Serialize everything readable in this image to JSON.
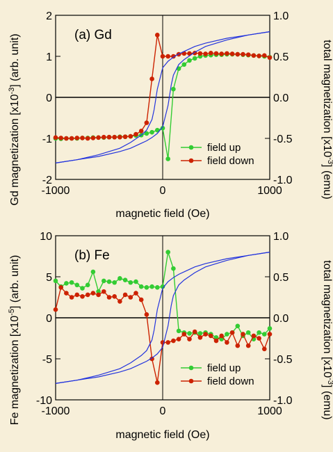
{
  "chart_data": [
    {
      "type": "line",
      "panel_label": "(a) Gd",
      "xlabel": "magnetic field (Oe)",
      "ylabel_left": "Gd magnetization [x10",
      "ylabel_left_exp": "-3",
      "ylabel_left_unit": "] (arb. unit)",
      "ylabel_right": "total magnetization [x10",
      "ylabel_right_exp": "-3",
      "ylabel_right_unit": "] (emu)",
      "xlim": [
        -1000,
        1000
      ],
      "ylim_left": [
        -2,
        2
      ],
      "ylim_right": [
        -1.0,
        1.0
      ],
      "xticks": [
        "-1000",
        "0",
        "1000"
      ],
      "yticks_left": [
        "-2",
        "-1",
        "0",
        "1",
        "2"
      ],
      "yticks_right": [
        "-1.0",
        "-0.5",
        "0.0",
        "0.5",
        "1.0"
      ],
      "legend": {
        "position": "bottom-right",
        "items": [
          "field up",
          "field down"
        ]
      },
      "colors": {
        "field_up": "#33cc33",
        "field_down": "#cc2200",
        "total": "#2233dd"
      },
      "series": [
        {
          "name": "field up",
          "x": [
            -1000,
            -950,
            -900,
            -850,
            -800,
            -750,
            -700,
            -650,
            -600,
            -550,
            -500,
            -450,
            -400,
            -350,
            -300,
            -250,
            -200,
            -150,
            -100,
            -50,
            0,
            50,
            100,
            150,
            200,
            250,
            300,
            350,
            400,
            450,
            500,
            550,
            600,
            650,
            700,
            750,
            800,
            850,
            900,
            950,
            1000
          ],
          "y": [
            -1.0,
            -1.01,
            -1.0,
            -1.0,
            -1.0,
            -0.99,
            -0.99,
            -0.98,
            -0.98,
            -0.98,
            -0.97,
            -0.97,
            -0.96,
            -0.96,
            -0.95,
            -0.93,
            -0.92,
            -0.88,
            -0.85,
            -0.8,
            -0.75,
            -1.5,
            0.2,
            0.7,
            0.8,
            0.9,
            0.95,
            1.0,
            1.02,
            1.03,
            1.04,
            1.04,
            1.05,
            1.05,
            1.05,
            1.04,
            1.03,
            1.02,
            1.01,
            1.0,
            0.98
          ]
        },
        {
          "name": "field down",
          "x": [
            -1000,
            -950,
            -900,
            -850,
            -800,
            -750,
            -700,
            -650,
            -600,
            -550,
            -500,
            -450,
            -400,
            -350,
            -300,
            -250,
            -200,
            -150,
            -100,
            -50,
            0,
            50,
            100,
            150,
            200,
            250,
            300,
            350,
            400,
            450,
            500,
            550,
            600,
            650,
            700,
            750,
            800,
            850,
            900,
            950,
            1000
          ],
          "y": [
            -0.98,
            -0.99,
            -1.0,
            -1.0,
            -0.99,
            -0.99,
            -1.0,
            -0.99,
            -0.98,
            -0.97,
            -0.97,
            -0.97,
            -0.97,
            -0.96,
            -0.95,
            -0.9,
            -0.82,
            -0.62,
            0.45,
            1.52,
            1.0,
            1.0,
            1.0,
            1.05,
            1.07,
            1.07,
            1.08,
            1.07,
            1.06,
            1.08,
            1.07,
            1.06,
            1.07,
            1.06,
            1.05,
            1.05,
            1.04,
            1.02,
            1.01,
            1.02,
            0.97
          ]
        },
        {
          "name": "total magnetization (ascending)",
          "x": [
            -1000,
            -800,
            -600,
            -400,
            -300,
            -200,
            -150,
            -100,
            -50,
            0,
            50,
            80,
            100,
            150,
            200,
            300,
            400,
            600,
            800,
            1000
          ],
          "y": [
            -0.8,
            -0.76,
            -0.72,
            -0.66,
            -0.62,
            -0.56,
            -0.53,
            -0.49,
            -0.44,
            -0.36,
            -0.1,
            0.15,
            0.27,
            0.4,
            0.46,
            0.55,
            0.62,
            0.7,
            0.76,
            0.8
          ]
        },
        {
          "name": "total magnetization (descending)",
          "x": [
            -1000,
            -800,
            -600,
            -400,
            -300,
            -200,
            -150,
            -100,
            -80,
            -50,
            0,
            50,
            100,
            150,
            200,
            300,
            400,
            600,
            800,
            1000
          ],
          "y": [
            -0.8,
            -0.76,
            -0.7,
            -0.62,
            -0.55,
            -0.46,
            -0.4,
            -0.27,
            -0.15,
            0.1,
            0.36,
            0.44,
            0.49,
            0.53,
            0.56,
            0.62,
            0.66,
            0.72,
            0.76,
            0.8
          ]
        }
      ]
    },
    {
      "type": "line",
      "panel_label": "(b) Fe",
      "xlabel": "magnetic field (Oe)",
      "ylabel_left": "Fe magnetization [x10",
      "ylabel_left_exp": "-5",
      "ylabel_left_unit": "] (arb. unit)",
      "ylabel_right": "total magnetization [x10",
      "ylabel_right_exp": "-3",
      "ylabel_right_unit": "] (emu)",
      "xlim": [
        -1000,
        1000
      ],
      "ylim_left": [
        -10,
        10
      ],
      "ylim_right": [
        -1.0,
        1.0
      ],
      "xticks": [
        "-1000",
        "0",
        "1000"
      ],
      "yticks_left": [
        "-10",
        "-5",
        "0",
        "5",
        "10"
      ],
      "yticks_right": [
        "-1.0",
        "-0.5",
        "0.0",
        "0.5",
        "1.0"
      ],
      "legend": {
        "position": "bottom-right",
        "items": [
          "field up",
          "field down"
        ]
      },
      "colors": {
        "field_up": "#33cc33",
        "field_down": "#cc2200",
        "total": "#2233dd"
      },
      "series": [
        {
          "name": "field up",
          "x": [
            -1000,
            -950,
            -900,
            -850,
            -800,
            -750,
            -700,
            -650,
            -600,
            -550,
            -500,
            -450,
            -400,
            -350,
            -300,
            -250,
            -200,
            -150,
            -100,
            -50,
            0,
            50,
            100,
            150,
            200,
            250,
            300,
            350,
            400,
            450,
            500,
            550,
            600,
            650,
            700,
            750,
            800,
            850,
            900,
            950,
            1000
          ],
          "y": [
            4.5,
            3.8,
            4.2,
            4.3,
            4.0,
            3.6,
            4.0,
            5.6,
            3.2,
            4.5,
            4.4,
            4.3,
            4.8,
            4.6,
            4.3,
            4.4,
            3.8,
            3.7,
            3.8,
            3.7,
            3.8,
            8.0,
            6.0,
            -1.6,
            -1.8,
            -1.9,
            -1.8,
            -1.9,
            -1.8,
            -2.0,
            -2.4,
            -2.6,
            -2.0,
            -1.8,
            -1.0,
            -2.2,
            -1.8,
            -2.6,
            -1.8,
            -2.0,
            -1.3
          ]
        },
        {
          "name": "field down",
          "x": [
            -1000,
            -950,
            -900,
            -850,
            -800,
            -750,
            -700,
            -650,
            -600,
            -550,
            -500,
            -450,
            -400,
            -350,
            -300,
            -250,
            -200,
            -150,
            -100,
            -50,
            0,
            50,
            100,
            150,
            200,
            250,
            300,
            350,
            400,
            450,
            500,
            550,
            600,
            650,
            700,
            750,
            800,
            850,
            900,
            950,
            1000
          ],
          "y": [
            1.0,
            3.7,
            3.0,
            2.5,
            2.8,
            2.6,
            2.8,
            3.0,
            2.8,
            3.2,
            2.5,
            2.6,
            2.0,
            2.8,
            2.5,
            3.0,
            2.2,
            0.4,
            -5.0,
            -7.9,
            -3.0,
            -3.0,
            -2.8,
            -2.6,
            -2.0,
            -2.6,
            -1.7,
            -2.4,
            -2.0,
            -2.2,
            -2.8,
            -2.2,
            -3.0,
            -1.8,
            -3.4,
            -2.0,
            -3.4,
            -2.2,
            -2.5,
            -3.8,
            -2.0
          ]
        },
        {
          "name": "total magnetization (ascending)",
          "x": [
            -1000,
            -800,
            -600,
            -400,
            -300,
            -200,
            -150,
            -100,
            -50,
            0,
            50,
            80,
            100,
            150,
            200,
            300,
            400,
            600,
            800,
            1000
          ],
          "y": [
            -0.8,
            -0.76,
            -0.72,
            -0.66,
            -0.62,
            -0.56,
            -0.53,
            -0.49,
            -0.44,
            -0.36,
            -0.1,
            0.15,
            0.27,
            0.4,
            0.46,
            0.55,
            0.62,
            0.7,
            0.76,
            0.8
          ]
        },
        {
          "name": "total magnetization (descending)",
          "x": [
            -1000,
            -800,
            -600,
            -400,
            -300,
            -200,
            -150,
            -100,
            -80,
            -50,
            0,
            50,
            100,
            150,
            200,
            300,
            400,
            600,
            800,
            1000
          ],
          "y": [
            -0.8,
            -0.76,
            -0.7,
            -0.62,
            -0.55,
            -0.46,
            -0.4,
            -0.27,
            -0.15,
            0.1,
            0.36,
            0.44,
            0.49,
            0.53,
            0.56,
            0.62,
            0.66,
            0.72,
            0.76,
            0.8
          ]
        }
      ]
    }
  ]
}
